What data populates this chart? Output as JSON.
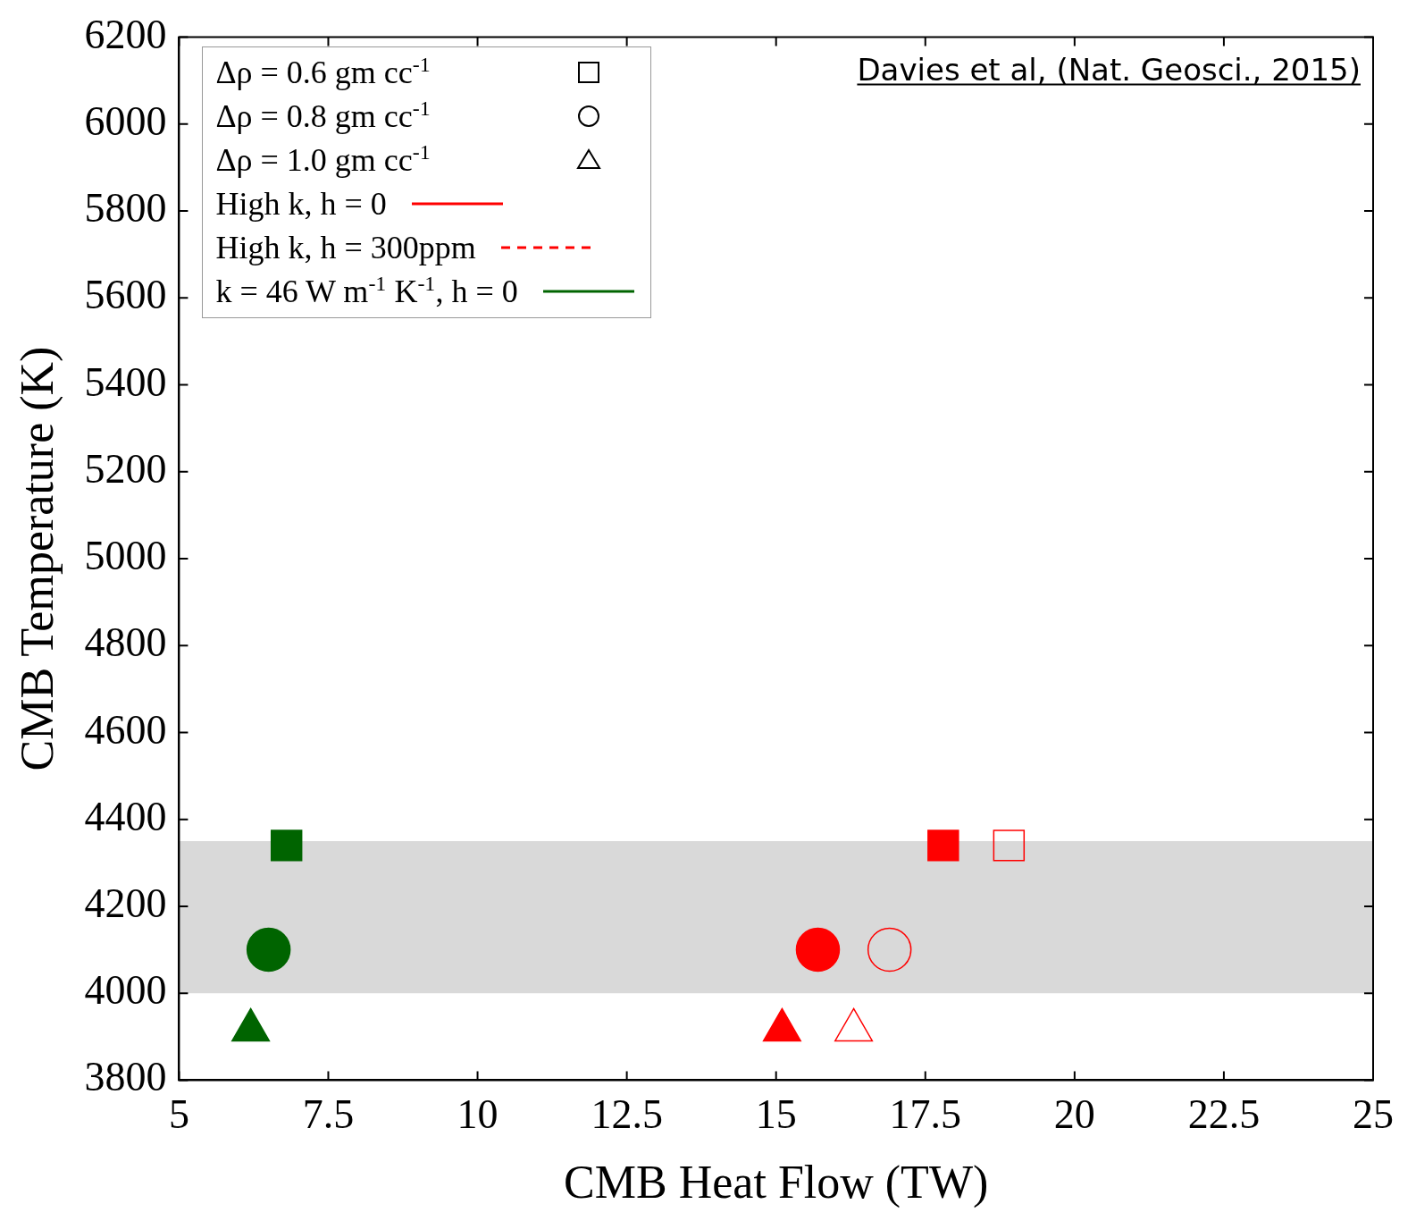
{
  "chart_data": {
    "type": "scatter",
    "xlabel": "CMB Heat Flow (TW)",
    "ylabel": "CMB Temperature (K)",
    "xlim": [
      5,
      25
    ],
    "xticks": [
      5,
      7.5,
      10,
      12.5,
      15,
      17.5,
      20,
      22.5,
      25
    ],
    "ylim": [
      3800,
      6200
    ],
    "yticks": [
      3800,
      4000,
      4200,
      4400,
      4600,
      4800,
      5000,
      5200,
      5400,
      5600,
      5800,
      6000,
      6200
    ],
    "grid": false,
    "legend": "top left",
    "annotations": [
      "Davies et al, (Nat. Geosci., 2015)"
    ],
    "bands": [
      {
        "axis": "y",
        "from": 4000,
        "to": 4350,
        "color": "#d9d9d9"
      }
    ],
    "series": [
      {
        "name": "Δρ = 0.6 gm cc$^{-1}$",
        "color": "#000000",
        "marker": "square"
      },
      {
        "name": "Δρ = 0.8 gm cc$^{-1}$",
        "color": "#000000",
        "marker": "circle"
      },
      {
        "name": "Δρ = 1.0 gm cc$^{-1}$",
        "color": "#000000",
        "marker": "triangle"
      },
      {
        "name": "High k, h = 0",
        "color": "#ff0000",
        "line_style": "solid",
        "marker": [
          "square",
          "circle",
          "triangle"
        ],
        "x": [
          17.8,
          15.7,
          15.1
        ],
        "values": [
          4340,
          4100,
          3915
        ]
      },
      {
        "name": "High k, h = 300ppm",
        "color": "#ff0000",
        "line_style": "dashed",
        "marker": [
          "square",
          "circle",
          "triangle"
        ],
        "x": [
          18.9,
          16.9,
          16.3
        ],
        "values": [
          4340,
          4100,
          3915
        ]
      },
      {
        "name": "k = 46 W m$^{-1}$ K$^{-1}$, h = 0",
        "color": "#006400",
        "line_style": "solid",
        "marker": [
          "square",
          "circle",
          "triangle"
        ],
        "x": [
          6.8,
          6.5,
          6.2
        ],
        "values": [
          4340,
          4100,
          3915
        ]
      }
    ]
  }
}
